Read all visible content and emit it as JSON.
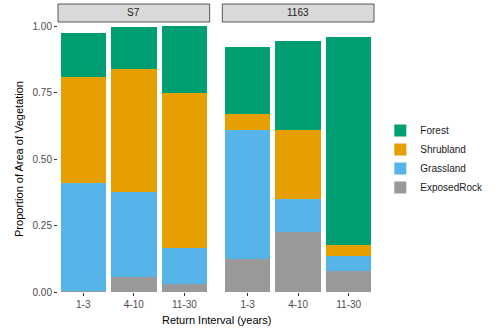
{
  "chart_data": [
    {
      "type": "bar",
      "title": "S7",
      "stacked": true,
      "legend": "right",
      "x_label": "Return Interval (years)",
      "y_label": "Proportion of Area of Vegetation",
      "categories": [
        "1-3",
        "4-10",
        "11-30"
      ],
      "ylim": [
        0,
        1
      ],
      "yticks": [
        {
          "value": 0,
          "label": "0.00"
        },
        {
          "value": 0.25,
          "label": "0.25"
        },
        {
          "value": 0.5,
          "label": "0.50"
        },
        {
          "value": 0.75,
          "label": "0.75"
        },
        {
          "value": 1,
          "label": "1.00"
        }
      ],
      "series": [
        {
          "name": "ExposedRock",
          "color": "#999999",
          "values": [
            0.005,
            0.055,
            0.03
          ]
        },
        {
          "name": "Grassland",
          "color": "#56B4E9",
          "values": [
            0.405,
            0.32,
            0.135
          ]
        },
        {
          "name": "Shrubland",
          "color": "#E69F00",
          "values": [
            0.4,
            0.465,
            0.585
          ]
        },
        {
          "name": "Forest",
          "color": "#009E73",
          "values": [
            0.165,
            0.155,
            0.25
          ]
        }
      ]
    },
    {
      "type": "bar",
      "title": "1163",
      "stacked": true,
      "categories": [
        "1-3",
        "4-10",
        "11-30"
      ],
      "ylim": [
        0,
        1
      ],
      "yticks": [
        {
          "value": 0,
          "label": "0.00"
        },
        {
          "value": 0.25,
          "label": "0.25"
        },
        {
          "value": 0.5,
          "label": "0.50"
        },
        {
          "value": 0.75,
          "label": "0.75"
        },
        {
          "value": 1,
          "label": "1.00"
        }
      ],
      "series": [
        {
          "name": "ExposedRock",
          "color": "#999999",
          "values": [
            0.125,
            0.225,
            0.08
          ]
        },
        {
          "name": "Grassland",
          "color": "#56B4E9",
          "values": [
            0.485,
            0.125,
            0.055
          ]
        },
        {
          "name": "Shrubland",
          "color": "#E69F00",
          "values": [
            0.06,
            0.26,
            0.04
          ]
        },
        {
          "name": "Forest",
          "color": "#009E73",
          "values": [
            0.25,
            0.335,
            0.785
          ]
        }
      ]
    }
  ]
}
